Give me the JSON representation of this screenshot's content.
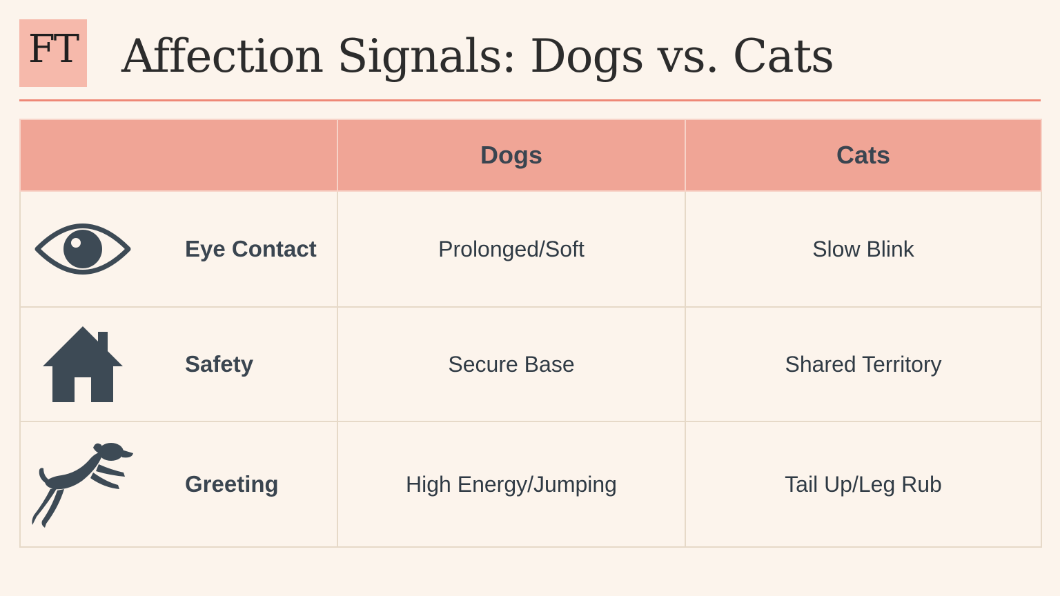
{
  "brand": {
    "logo_text": "FT",
    "logo_color": "#f6b9ab"
  },
  "header": {
    "title": "Affection Signals: Dogs vs. Cats",
    "rule_color": "#ee8877"
  },
  "table": {
    "columns": [
      "",
      "Dogs",
      "Cats"
    ],
    "header_color": "#f0a596",
    "rows": [
      {
        "icon": "eye-icon",
        "label": "Eye Contact",
        "dogs": "Prolonged/Soft",
        "cats": "Slow Blink"
      },
      {
        "icon": "house-icon",
        "label": "Safety",
        "dogs": "Secure Base",
        "cats": "Shared Territory"
      },
      {
        "icon": "jumping-dog-icon",
        "label": "Greeting",
        "dogs": "High Energy/Jumping",
        "cats": "Tail Up/Leg Rub"
      }
    ]
  },
  "colors": {
    "background": "#fcf4ec",
    "icon": "#3d4a55"
  }
}
